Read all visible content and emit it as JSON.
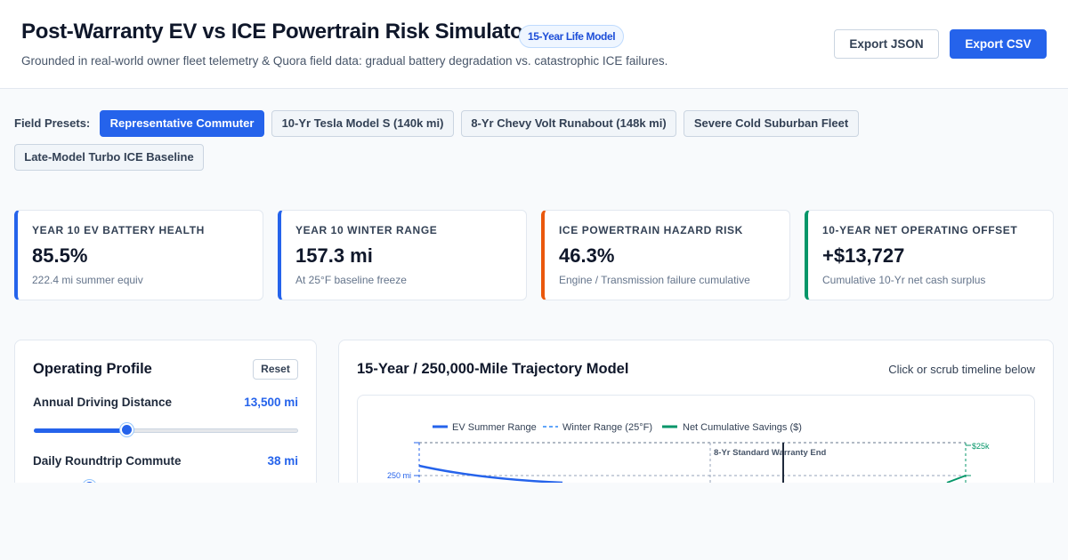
{
  "header": {
    "title": "Post-Warranty EV vs ICE Powertrain Risk Simulator",
    "badge": "15-Year Life Model",
    "subtitle": "Grounded in real-world owner fleet telemetry & Quora field data: gradual battery degradation vs. catastrophic ICE failures.",
    "export_json": "Export JSON",
    "export_csv": "Export CSV"
  },
  "presets": {
    "label": "Field Presets:",
    "items": [
      {
        "label": "Representative Commuter",
        "active": true
      },
      {
        "label": "10-Yr Tesla Model S (140k mi)",
        "active": false
      },
      {
        "label": "8-Yr Chevy Volt Runabout (148k mi)",
        "active": false
      },
      {
        "label": "Severe Cold Suburban Fleet",
        "active": false
      },
      {
        "label": "Late-Model Turbo ICE Baseline",
        "active": false
      }
    ]
  },
  "cards": [
    {
      "label": "Year 10 EV Battery Health",
      "value": "85.5%",
      "sub": "222.4 mi summer equiv",
      "accent": "#2563eb"
    },
    {
      "label": "Year 10 Winter Range",
      "value": "157.3 mi",
      "sub": "At 25°F baseline freeze",
      "accent": "#2563eb"
    },
    {
      "label": "ICE Powertrain Hazard Risk",
      "value": "46.3%",
      "sub": "Engine / Transmission failure cumulative",
      "accent": "#ea580c"
    },
    {
      "label": "10-Year Net Operating Offset",
      "value": "+$13,727",
      "sub": "Cumulative 10-Yr net cash surplus",
      "accent": "#059669"
    }
  ],
  "profile": {
    "title": "Operating Profile",
    "reset": "Reset",
    "fields": [
      {
        "label": "Annual Driving Distance",
        "value": "13,500 mi",
        "fraction": 0.35
      },
      {
        "label": "Daily Roundtrip Commute",
        "value": "38 mi",
        "fraction": 0.21
      }
    ]
  },
  "trajectory": {
    "title": "15-Year / 250,000-Mile Trajectory Model",
    "hint": "Click or scrub timeline below",
    "legend": {
      "summer": "EV Summer Range",
      "winter": "Winter Range (25°F)",
      "savings": "Net Cumulative Savings ($)"
    },
    "y_left_tick": "250 mi",
    "y_right_tick": "$25k",
    "warranty_label": "8-Yr Standard Warranty End"
  },
  "colors": {
    "primary": "#2563eb",
    "orange": "#ea580c",
    "green": "#059669",
    "winter": "#60a5fa"
  }
}
